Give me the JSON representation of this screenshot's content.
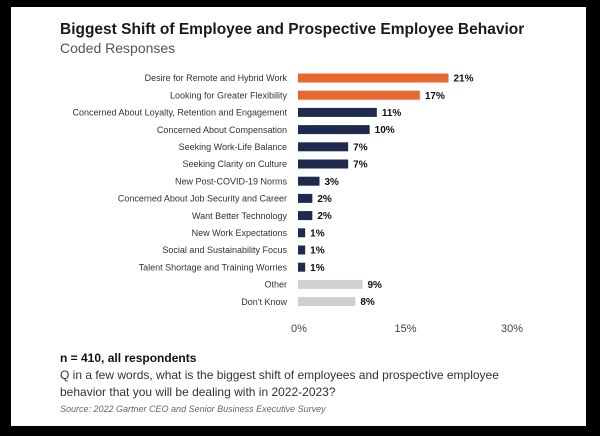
{
  "colors": {
    "highlight": "#E8672E",
    "primary": "#1F2B4E",
    "muted": "#D0D0D0"
  },
  "chart_data": {
    "type": "bar",
    "orientation": "horizontal",
    "title": "Biggest Shift of Employee and Prospective Employee Behavior",
    "subtitle": "Coded Responses",
    "categories": [
      "Desire for Remote and Hybrid Work",
      "Looking for Greater Flexibility",
      "Concerned About Loyalty, Retention and Engagement",
      "Concerned About Compensation",
      "Seeking Work-Life Balance",
      "Seeking Clarity on Culture",
      "New Post-COVID-19 Norms",
      "Concerned About Job Security and Career",
      "Want Better Technology",
      "New Work Expectations",
      "Social and Sustainability Focus",
      "Talent Shortage and Training Worries",
      "Other",
      "Don't Know"
    ],
    "values": [
      21,
      17,
      11,
      10,
      7,
      7,
      3,
      2,
      2,
      1,
      1,
      1,
      9,
      8
    ],
    "value_labels": [
      "21%",
      "17%",
      "11%",
      "10%",
      "7%",
      "7%",
      "3%",
      "2%",
      "2%",
      "1%",
      "1%",
      "1%",
      "9%",
      "8%"
    ],
    "color_groups": [
      "highlight",
      "highlight",
      "primary",
      "primary",
      "primary",
      "primary",
      "primary",
      "primary",
      "primary",
      "primary",
      "primary",
      "primary",
      "muted",
      "muted"
    ],
    "xlim": [
      0,
      30
    ],
    "xticks": [
      0,
      15,
      30
    ],
    "xtick_labels": [
      "0%",
      "15%",
      "30%"
    ],
    "xlabel": "",
    "ylabel": "",
    "grid": false
  },
  "footer": {
    "sample_note": "n = 410, all respondents",
    "question": "Q in a few words, what is the biggest shift of employees and prospective employee behavior that you will be dealing with in 2022-2023?",
    "source": "Source: 2022 Gartner CEO and Senior Business Executive Survey"
  }
}
